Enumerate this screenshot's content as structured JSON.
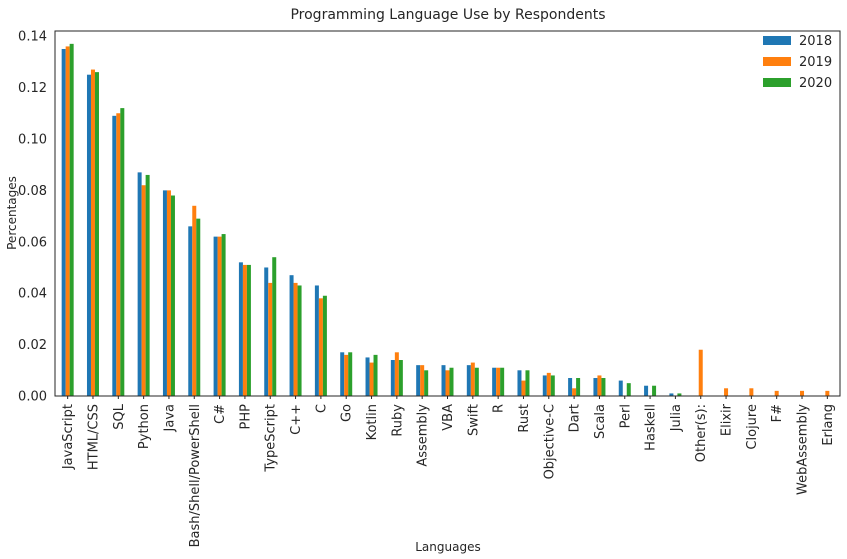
{
  "chart_data": {
    "type": "bar",
    "title": "Programming Language Use by Respondents",
    "xlabel": "Languages",
    "ylabel": "Percentages",
    "ylim": [
      0,
      0.142
    ],
    "yticks": [
      0.0,
      0.02,
      0.04,
      0.06,
      0.08,
      0.1,
      0.12,
      0.14
    ],
    "ytick_labels": [
      "0.00",
      "0.02",
      "0.04",
      "0.06",
      "0.08",
      "0.10",
      "0.12",
      "0.14"
    ],
    "grid": false,
    "legend_position": "top-right",
    "categories": [
      "JavaScript",
      "HTML/CSS",
      "SQL",
      "Python",
      "Java",
      "Bash/Shell/PowerShell",
      "C#",
      "PHP",
      "TypeScript",
      "C++",
      "C",
      "Go",
      "Kotlin",
      "Ruby",
      "Assembly",
      "VBA",
      "Swift",
      "R",
      "Rust",
      "Objective-C",
      "Dart",
      "Scala",
      "Perl",
      "Haskell",
      "Julia",
      "Other(s):",
      "Elixir",
      "Clojure",
      "F#",
      "WebAssembly",
      "Erlang"
    ],
    "series": [
      {
        "name": "2018",
        "color": "#1f77b4",
        "values": [
          0.135,
          0.125,
          0.109,
          0.087,
          0.08,
          0.066,
          0.062,
          0.052,
          0.05,
          0.047,
          0.043,
          0.017,
          0.015,
          0.014,
          0.012,
          0.012,
          0.012,
          0.011,
          0.01,
          0.008,
          0.007,
          0.007,
          0.006,
          0.004,
          0.001,
          0,
          0,
          0,
          0,
          0,
          0
        ]
      },
      {
        "name": "2019",
        "color": "#ff7f0e",
        "values": [
          0.136,
          0.127,
          0.11,
          0.082,
          0.08,
          0.074,
          0.062,
          0.051,
          0.044,
          0.044,
          0.038,
          0.016,
          0.013,
          0.017,
          0.012,
          0.01,
          0.013,
          0.011,
          0.006,
          0.009,
          0.003,
          0.008,
          0,
          0,
          0,
          0.018,
          0.003,
          0.003,
          0.002,
          0.002,
          0.002
        ]
      },
      {
        "name": "2020",
        "color": "#2ca02c",
        "values": [
          0.137,
          0.126,
          0.112,
          0.086,
          0.078,
          0.069,
          0.063,
          0.051,
          0.054,
          0.043,
          0.039,
          0.017,
          0.016,
          0.014,
          0.01,
          0.011,
          0.011,
          0.011,
          0.01,
          0.008,
          0.007,
          0.007,
          0.005,
          0.004,
          0.001,
          0,
          0,
          0,
          0,
          0,
          0
        ]
      }
    ]
  }
}
